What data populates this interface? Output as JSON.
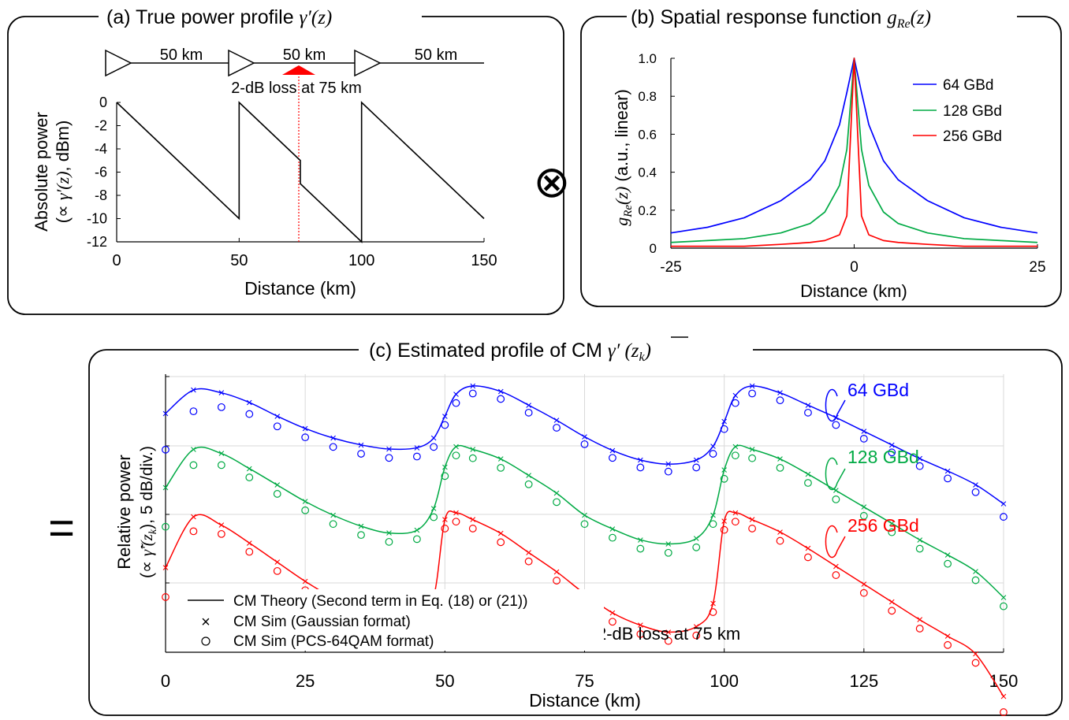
{
  "panel_a": {
    "title_text": "(a) True power profile ",
    "title_symbol": "γ′(z)",
    "span_labels": [
      "50 km",
      "50 km",
      "50 km"
    ],
    "loss_label": "2-dB loss at 75 km",
    "ylabel_line1": "Absolute power",
    "ylabel_line2_prefix": "(∝ ",
    "ylabel_line2_symbol": "γ′(z)",
    "ylabel_line2_suffix": ", dBm)",
    "xlabel": "Distance (km)",
    "colors": {
      "line": "#000000",
      "loss_marker": "#ff0000"
    }
  },
  "panel_b": {
    "title_text": "(b) Spatial response function ",
    "title_symbol": "g",
    "title_sub": "Re",
    "title_arg": "(z)",
    "ylabel_symbol": "g",
    "ylabel_sub": "Re",
    "ylabel_arg": "(z)",
    "ylabel_suffix": "  (a.u., linear)",
    "xlabel": "Distance (km)",
    "colors": {
      "64": "#0000ff",
      "128": "#00aa44",
      "256": "#ff0000"
    }
  },
  "operator_convolution": "⊗",
  "operator_equals": "=",
  "panel_c": {
    "title_text": "(c) Estimated profile of CM ",
    "title_symbol": "γ′",
    "title_arg": " (z",
    "title_sub": "k",
    "title_close": ")",
    "ylabel_line1": "Relative power",
    "ylabel_line2_prefix": "(∝ ",
    "ylabel_line2_symbol": "γ̃′(z",
    "ylabel_line2_sub": "k",
    "ylabel_line2_suffix": "), 5 dB/div.)",
    "xlabel": "Distance (km)",
    "series_labels": [
      "64 GBd",
      "128 GBd",
      "256 GBd"
    ],
    "legend": [
      "CM Theory (Second term in Eq. (18) or (21))",
      "CM Sim (Gaussian format)",
      "CM Sim (PCS-64QAM format)"
    ],
    "loss_label": "2-dB loss at 75 km",
    "colors": {
      "64": "#0000ff",
      "128": "#00aa44",
      "256": "#ff0000",
      "grid": "#d9d9d9"
    }
  },
  "chart_data": [
    {
      "type": "line",
      "title": "(a) True power profile γ′(z)",
      "xlabel": "Distance (km)",
      "ylabel": "Absolute power (∝ γ′(z), dBm)",
      "xlim": [
        0,
        150
      ],
      "ylim": [
        -12,
        0
      ],
      "x_ticks": [
        0,
        50,
        100,
        150
      ],
      "y_ticks": [
        0,
        -2,
        -4,
        -6,
        -8,
        -10,
        -12
      ],
      "grid": false,
      "series": [
        {
          "x": [
            0,
            50,
            50,
            75,
            75,
            100,
            100,
            150
          ],
          "y": [
            0,
            -10,
            0,
            -5,
            -7,
            -12,
            0,
            -10
          ]
        }
      ],
      "annotations": [
        "50 km",
        "50 km",
        "50 km",
        "2-dB loss at 75 km"
      ]
    },
    {
      "type": "line",
      "title": "(b) Spatial response function g_Re(z)",
      "xlabel": "Distance (km)",
      "ylabel": "g_Re(z) (a.u., linear)",
      "xlim": [
        -25,
        25
      ],
      "ylim": [
        0,
        1.0
      ],
      "x_ticks": [
        -25,
        0,
        25
      ],
      "y_ticks": [
        0,
        0.2,
        0.4,
        0.6,
        0.8,
        1.0
      ],
      "legend_position": "top-right",
      "series": [
        {
          "name": "64 GBd",
          "x": [
            -25,
            -20,
            -15,
            -10,
            -6,
            -4,
            -2,
            -1,
            0,
            1,
            2,
            4,
            6,
            10,
            15,
            20,
            25
          ],
          "y": [
            0.08,
            0.11,
            0.16,
            0.25,
            0.36,
            0.46,
            0.65,
            0.82,
            1.0,
            0.82,
            0.65,
            0.46,
            0.36,
            0.25,
            0.16,
            0.11,
            0.08
          ]
        },
        {
          "name": "128 GBd",
          "x": [
            -25,
            -20,
            -15,
            -10,
            -6,
            -4,
            -2,
            -1,
            0,
            1,
            2,
            4,
            6,
            10,
            15,
            20,
            25
          ],
          "y": [
            0.03,
            0.04,
            0.05,
            0.08,
            0.13,
            0.19,
            0.33,
            0.52,
            1.0,
            0.52,
            0.33,
            0.19,
            0.13,
            0.08,
            0.05,
            0.04,
            0.03
          ]
        },
        {
          "name": "256 GBd",
          "x": [
            -25,
            -20,
            -15,
            -10,
            -6,
            -4,
            -2,
            -1,
            0,
            1,
            2,
            4,
            6,
            10,
            15,
            20,
            25
          ],
          "y": [
            0.01,
            0.01,
            0.01,
            0.02,
            0.03,
            0.04,
            0.07,
            0.17,
            1.0,
            0.17,
            0.07,
            0.04,
            0.03,
            0.02,
            0.01,
            0.01,
            0.01
          ]
        }
      ]
    },
    {
      "type": "line",
      "title": "(c) Estimated profile of CM γ′ (z_k)",
      "xlabel": "Distance (km)",
      "ylabel": "Relative power (∝ γ̃′(z_k), 5 dB/div.)",
      "xlim": [
        0,
        150
      ],
      "x_ticks": [
        0,
        25,
        50,
        75,
        100,
        125,
        150
      ],
      "grid": true,
      "x": [
        0,
        5,
        10,
        15,
        20,
        25,
        30,
        35,
        40,
        45,
        48,
        50,
        52,
        55,
        60,
        65,
        70,
        75,
        80,
        85,
        90,
        95,
        98,
        100,
        102,
        105,
        110,
        115,
        120,
        125,
        130,
        135,
        140,
        145,
        150
      ],
      "series": [
        {
          "name": "64 GBd",
          "theory": [
            -2.0,
            -0.3,
            -0.5,
            -1.2,
            -2.2,
            -3.1,
            -3.8,
            -4.3,
            -4.6,
            -4.5,
            -3.8,
            -2.2,
            -0.6,
            0.0,
            -0.4,
            -1.4,
            -2.5,
            -3.7,
            -4.7,
            -5.4,
            -5.7,
            -5.4,
            -4.4,
            -2.6,
            -0.7,
            0.0,
            -0.5,
            -1.4,
            -2.3,
            -3.3,
            -4.3,
            -5.3,
            -6.2,
            -7.2,
            -8.6
          ],
          "gaussian_sim": [
            -2.0,
            -0.3,
            -0.5,
            -1.2,
            -2.2,
            -3.1,
            -3.8,
            -4.3,
            -4.6,
            -4.5,
            -3.8,
            -2.2,
            -0.6,
            0.0,
            -0.4,
            -1.4,
            -2.5,
            -3.7,
            -4.7,
            -5.4,
            -5.7,
            -5.4,
            -4.4,
            -2.6,
            -0.7,
            0.0,
            -0.5,
            -1.4,
            -2.3,
            -3.3,
            -4.3,
            -5.3,
            -6.2,
            -7.2,
            -8.6
          ],
          "pcs64qam_sim": [
            -4.3,
            -1.5,
            -1.2,
            -1.7,
            -2.6,
            -3.4,
            -4.1,
            -4.6,
            -4.9,
            -4.8,
            -4.1,
            -2.5,
            -0.9,
            -0.2,
            -0.6,
            -1.6,
            -2.7,
            -3.9,
            -4.9,
            -5.6,
            -5.9,
            -5.6,
            -4.6,
            -2.8,
            -0.9,
            -0.2,
            -0.7,
            -1.6,
            -2.5,
            -3.5,
            -4.5,
            -5.5,
            -6.4,
            -7.4,
            -9.2
          ]
        },
        {
          "name": "128 GBd",
          "theory": [
            -3.0,
            -0.2,
            -0.5,
            -1.6,
            -2.8,
            -4.0,
            -5.0,
            -5.8,
            -6.3,
            -6.1,
            -4.5,
            -1.5,
            0.0,
            -0.2,
            -0.9,
            -2.1,
            -3.4,
            -5.0,
            -6.0,
            -6.8,
            -7.1,
            -6.7,
            -5.0,
            -1.7,
            0.0,
            -0.2,
            -0.9,
            -2.0,
            -3.2,
            -4.4,
            -5.6,
            -6.8,
            -7.9,
            -9.1,
            -11.0
          ],
          "gaussian_sim": [
            -3.0,
            -0.2,
            -0.5,
            -1.6,
            -2.8,
            -4.0,
            -5.0,
            -5.8,
            -6.3,
            -6.1,
            -4.5,
            -1.5,
            0.0,
            -0.2,
            -0.9,
            -2.1,
            -3.4,
            -5.0,
            -6.0,
            -6.8,
            -7.1,
            -6.7,
            -5.0,
            -1.7,
            0.0,
            -0.2,
            -0.9,
            -2.0,
            -3.2,
            -4.4,
            -5.6,
            -6.8,
            -7.9,
            -9.1,
            -11.0
          ],
          "pcs64qam_sim": [
            -5.5,
            -1.0,
            -1.0,
            -1.9,
            -3.1,
            -4.3,
            -5.3,
            -6.1,
            -6.6,
            -6.4,
            -4.8,
            -1.8,
            -0.3,
            -0.5,
            -1.2,
            -2.4,
            -3.7,
            -5.3,
            -6.3,
            -7.1,
            -7.4,
            -7.0,
            -5.3,
            -2.0,
            -0.3,
            -0.5,
            -1.2,
            -2.3,
            -3.5,
            -4.7,
            -5.9,
            -7.1,
            -8.2,
            -9.4,
            -11.3
          ]
        },
        {
          "name": "256 GBd",
          "theory": [
            -4.0,
            -0.3,
            -0.9,
            -2.2,
            -3.6,
            -5.0,
            -6.2,
            -7.1,
            -7.6,
            -7.4,
            -6.1,
            -0.5,
            0.0,
            -0.5,
            -1.5,
            -2.9,
            -4.3,
            -5.9,
            -7.3,
            -8.2,
            -8.7,
            -8.3,
            -6.6,
            -0.6,
            0.0,
            -0.5,
            -1.4,
            -2.6,
            -3.9,
            -5.2,
            -6.5,
            -7.8,
            -9.0,
            -10.3,
            -13.4
          ],
          "gaussian_sim": [
            -4.0,
            -0.3,
            -0.9,
            -2.2,
            -3.6,
            -5.0,
            -6.2,
            -7.1,
            -7.6,
            -7.4,
            -6.1,
            -0.5,
            0.0,
            -0.5,
            -1.5,
            -2.9,
            -4.3,
            -5.9,
            -7.3,
            -8.2,
            -8.7,
            -8.3,
            -6.6,
            -0.6,
            0.0,
            -0.5,
            -1.4,
            -2.6,
            -3.9,
            -5.2,
            -6.5,
            -7.8,
            -9.0,
            -10.3,
            -13.4
          ],
          "pcs64qam_sim": [
            -5.8,
            -1.0,
            -1.2,
            -2.5,
            -3.9,
            -5.3,
            -6.5,
            -7.4,
            -7.9,
            -7.7,
            -6.4,
            -0.8,
            -0.3,
            -0.8,
            -1.8,
            -3.2,
            -4.6,
            -6.2,
            -7.6,
            -8.5,
            -9.0,
            -8.6,
            -6.9,
            -0.9,
            -0.3,
            -0.8,
            -1.7,
            -2.9,
            -4.2,
            -5.5,
            -6.8,
            -8.1,
            -9.3,
            -10.6,
            -14.2
          ]
        }
      ],
      "legend": [
        "CM Theory (Second term in Eq. (18) or (21))",
        "CM Sim (Gaussian format)",
        "CM Sim (PCS-64QAM format)"
      ],
      "annotations": [
        "64 GBd",
        "128 GBd",
        "256 GBd",
        "2-dB loss at 75 km"
      ]
    }
  ]
}
